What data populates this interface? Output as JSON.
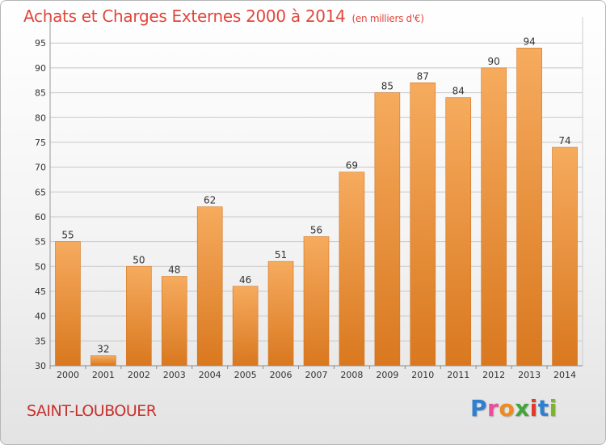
{
  "header": {
    "title": "Achats et Charges Externes 2000 à 2014",
    "unit": "(en milliers d'€)"
  },
  "footer": {
    "place": "SAINT-LOUBOUER",
    "brand": "Proxiti",
    "brand_colors": [
      "#2e7fd0",
      "#e84f9a",
      "#f08a1c",
      "#42a53a",
      "#e23a2a",
      "#2e7fd0",
      "#7bb624"
    ]
  },
  "colors": {
    "title": "#e0473c",
    "place": "#c9302c",
    "bar_light": "#f6ab5e",
    "bar_dark": "#d9781f",
    "grid": "#c8c8c8"
  },
  "chart_data": {
    "type": "bar",
    "title": "Achats et Charges Externes 2000 à 2014",
    "subtitle": "(en milliers d'€)",
    "xlabel": "",
    "ylabel": "",
    "categories": [
      "2000",
      "2001",
      "2002",
      "2003",
      "2004",
      "2005",
      "2006",
      "2007",
      "2008",
      "2009",
      "2010",
      "2011",
      "2012",
      "2013",
      "2014"
    ],
    "values": [
      55,
      32,
      50,
      48,
      62,
      46,
      51,
      56,
      69,
      85,
      87,
      84,
      90,
      94,
      74
    ],
    "ylim": [
      30,
      95
    ],
    "yticks": [
      30,
      35,
      40,
      45,
      50,
      55,
      60,
      65,
      70,
      75,
      80,
      85,
      90,
      95
    ],
    "grid": true,
    "legend": "none"
  }
}
